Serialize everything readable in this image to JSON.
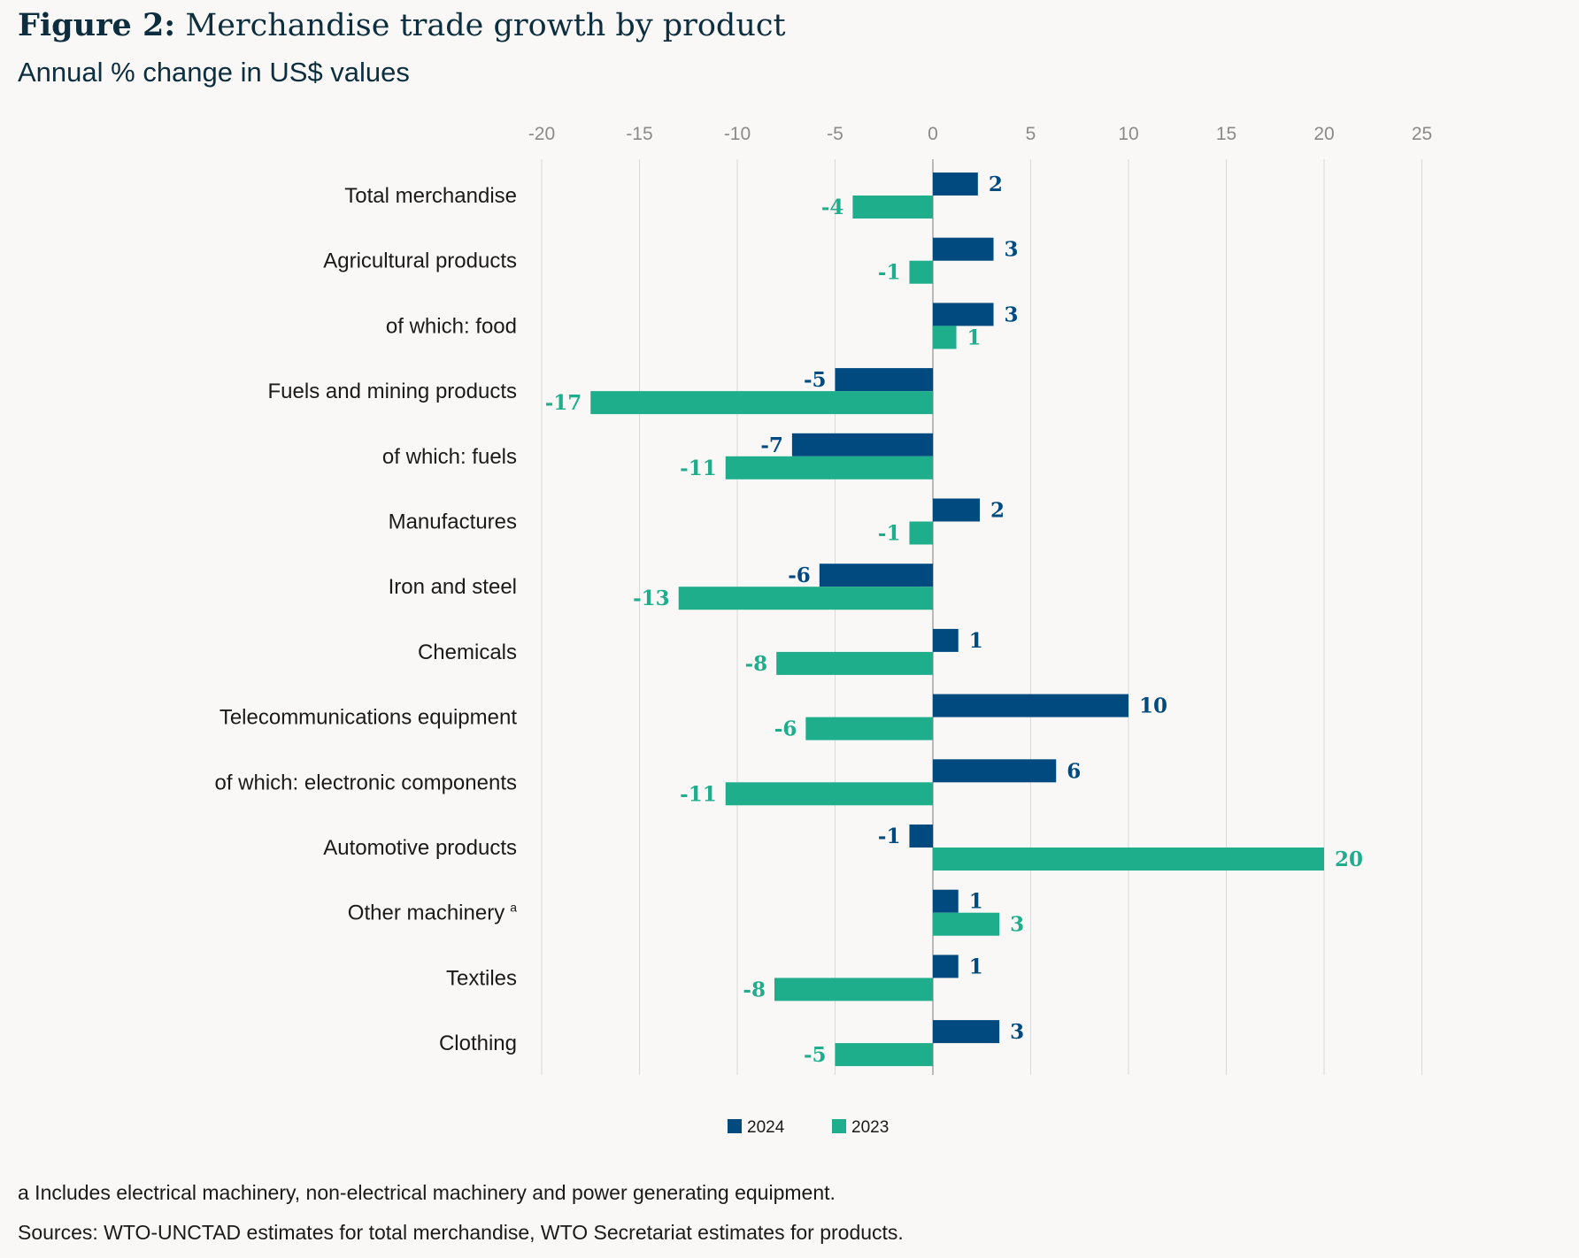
{
  "figure_label": "Figure 2:",
  "figure_title": "Merchandise trade growth by product",
  "subtitle": "Annual % change in US$ values",
  "footnote": "a Includes electrical machinery, non-electrical machinery and power generating equipment.",
  "sources": "Sources: WTO-UNCTAD estimates for total merchandise, WTO Secretariat estimates for products.",
  "colors": {
    "s2024": "#004a80",
    "s2023": "#1eae8c",
    "grid": "#d9d9d9",
    "zero": "#a6a6a6"
  },
  "chart_data": {
    "type": "bar",
    "orientation": "horizontal",
    "xlim": [
      -20,
      25
    ],
    "ticks": [
      -20,
      -15,
      -10,
      -5,
      0,
      5,
      10,
      15,
      20,
      25
    ],
    "categories": [
      "Total merchandise",
      "Agricultural products",
      "of which: food",
      "Fuels and mining products",
      "of which: fuels",
      "Manufactures",
      "Iron and steel",
      "Chemicals",
      "Telecommunications equipment",
      "of which: electronic components",
      "Automotive products",
      "Other machinery",
      "Textiles",
      "Clothing"
    ],
    "superscripts": [
      "",
      "",
      "",
      "",
      "",
      "",
      "",
      "",
      "",
      "",
      "",
      "a",
      "",
      ""
    ],
    "series": [
      {
        "name": "2024",
        "values": [
          2.3,
          3.1,
          3.1,
          -5,
          -7.2,
          2.4,
          -5.8,
          1.3,
          10,
          6.3,
          -1.2,
          1.3,
          1.3,
          3.4
        ],
        "labels": [
          "2",
          "3",
          "3",
          "-5",
          "-7",
          "2",
          "-6",
          "1",
          "10",
          "6",
          "-1",
          "1",
          "1",
          "3"
        ]
      },
      {
        "name": "2023",
        "values": [
          -4.1,
          -1.2,
          1.2,
          -17.5,
          -10.6,
          -1.2,
          -13,
          -8,
          -6.5,
          -10.6,
          20,
          3.4,
          -8.1,
          -5
        ],
        "labels": [
          "-4",
          "-1",
          "1",
          "-17",
          "-11",
          "-1",
          "-13",
          "-8",
          "-6",
          "-11",
          "20",
          "3",
          "-8",
          "-5"
        ]
      }
    ],
    "legend": [
      "2024",
      "2023"
    ],
    "legend_position": "bottom-center",
    "grid": true
  }
}
